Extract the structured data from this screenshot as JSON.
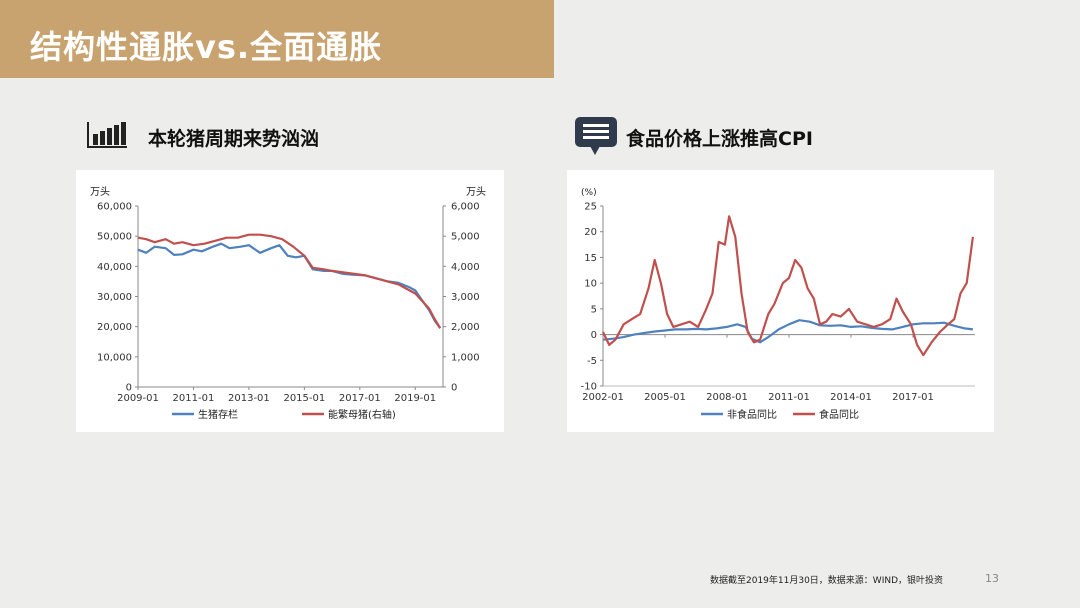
{
  "header": {
    "title": "结构性通胀vs.全面通胀"
  },
  "left_section": {
    "heading": "本轮猪周期来势汹汹",
    "icon": "bar-chart-icon"
  },
  "right_section": {
    "heading": "食品价格上涨推高CPI",
    "icon": "speech-bubble-list-icon"
  },
  "footer": {
    "note": "数据截至2019年11月30日，数据来源：WIND，银叶投资",
    "page": "13"
  },
  "colors": {
    "accent": "#c9a36f",
    "blue_series": "#4f81bd",
    "red_series": "#c0504d"
  },
  "chart_data": [
    {
      "type": "line",
      "left_unit": "万头",
      "right_unit": "万头",
      "x_ticks": [
        "2009-01",
        "2011-01",
        "2013-01",
        "2015-01",
        "2017-01",
        "2019-01"
      ],
      "y_left_ticks": [
        "0",
        "10,000",
        "20,000",
        "30,000",
        "40,000",
        "50,000",
        "60,000"
      ],
      "y_right_ticks": [
        "0",
        "1,000",
        "2,000",
        "3,000",
        "4,000",
        "5,000",
        "6,000"
      ],
      "ylim_left": [
        0,
        60000
      ],
      "ylim_right": [
        0,
        6000
      ],
      "xlim": [
        2009.0,
        2020.0
      ],
      "legend_position": "bottom",
      "series": [
        {
          "name": "生猪存栏",
          "axis": "left",
          "color": "#4f81bd",
          "x": [
            2009.0,
            2009.3,
            2009.6,
            2010.0,
            2010.3,
            2010.6,
            2011.0,
            2011.3,
            2011.7,
            2012.0,
            2012.3,
            2012.7,
            2013.0,
            2013.4,
            2013.8,
            2014.1,
            2014.4,
            2014.7,
            2015.0,
            2015.3,
            2015.7,
            2016.0,
            2016.4,
            2016.8,
            2017.2,
            2017.6,
            2018.0,
            2018.4,
            2018.8,
            2019.0,
            2019.3,
            2019.5,
            2019.7,
            2019.9
          ],
          "y": [
            45500,
            44500,
            46500,
            46000,
            43800,
            44000,
            45500,
            45000,
            46500,
            47500,
            46000,
            46500,
            47000,
            44500,
            46000,
            47000,
            43500,
            43000,
            43500,
            39000,
            38500,
            38500,
            37500,
            37200,
            37000,
            36000,
            35000,
            34500,
            33000,
            32000,
            28000,
            25500,
            22000,
            19500
          ]
        },
        {
          "name": "能繁母猪(右轴)",
          "axis": "right",
          "color": "#c0504d",
          "x": [
            2009.0,
            2009.3,
            2009.6,
            2010.0,
            2010.3,
            2010.6,
            2011.0,
            2011.4,
            2011.8,
            2012.2,
            2012.6,
            2013.0,
            2013.4,
            2013.8,
            2014.2,
            2014.6,
            2015.0,
            2015.3,
            2015.7,
            2016.0,
            2016.4,
            2016.8,
            2017.2,
            2017.6,
            2018.0,
            2018.4,
            2018.8,
            2019.0,
            2019.3,
            2019.5,
            2019.7,
            2019.9
          ],
          "y": [
            4950,
            4900,
            4800,
            4900,
            4750,
            4800,
            4700,
            4750,
            4850,
            4950,
            4950,
            5050,
            5050,
            5000,
            4900,
            4650,
            4350,
            3950,
            3900,
            3850,
            3800,
            3750,
            3700,
            3600,
            3500,
            3400,
            3200,
            3100,
            2800,
            2600,
            2250,
            1950
          ]
        }
      ]
    },
    {
      "type": "line",
      "y_unit": "(%)",
      "x_ticks": [
        "2002-01",
        "2005-01",
        "2008-01",
        "2011-01",
        "2014-01",
        "2017-01"
      ],
      "y_ticks": [
        "-10",
        "-5",
        "0",
        "5",
        "10",
        "15",
        "20",
        "25"
      ],
      "ylim": [
        -10,
        25
      ],
      "xlim": [
        2002.0,
        2020.0
      ],
      "legend_position": "bottom",
      "series": [
        {
          "name": "非食品同比",
          "color": "#4f81bd",
          "x": [
            2002.0,
            2002.5,
            2003.0,
            2003.5,
            2004.0,
            2004.5,
            2005.0,
            2005.5,
            2006.0,
            2006.5,
            2007.0,
            2007.5,
            2008.0,
            2008.5,
            2008.9,
            2009.2,
            2009.6,
            2010.0,
            2010.5,
            2011.0,
            2011.5,
            2012.0,
            2012.5,
            2013.0,
            2013.5,
            2014.0,
            2014.5,
            2015.0,
            2015.5,
            2016.0,
            2016.5,
            2017.0,
            2017.5,
            2018.0,
            2018.5,
            2019.0,
            2019.5,
            2019.9
          ],
          "y": [
            -1.0,
            -0.8,
            -0.5,
            0.0,
            0.3,
            0.6,
            0.8,
            1.0,
            1.0,
            1.1,
            1.0,
            1.2,
            1.5,
            2.0,
            1.5,
            -0.8,
            -1.5,
            -0.5,
            1.0,
            2.0,
            2.8,
            2.5,
            1.8,
            1.7,
            1.8,
            1.5,
            1.6,
            1.3,
            1.1,
            1.0,
            1.5,
            2.0,
            2.2,
            2.2,
            2.3,
            1.7,
            1.2,
            1.0
          ]
        },
        {
          "name": "食品同比",
          "color": "#c0504d",
          "x": [
            2002.0,
            2002.3,
            2002.6,
            2003.0,
            2003.4,
            2003.8,
            2004.2,
            2004.5,
            2004.8,
            2005.1,
            2005.4,
            2005.8,
            2006.2,
            2006.6,
            2007.0,
            2007.3,
            2007.6,
            2007.9,
            2008.1,
            2008.4,
            2008.7,
            2009.0,
            2009.3,
            2009.6,
            2010.0,
            2010.3,
            2010.7,
            2011.0,
            2011.3,
            2011.6,
            2011.9,
            2012.2,
            2012.5,
            2012.8,
            2013.1,
            2013.5,
            2013.9,
            2014.3,
            2014.7,
            2015.1,
            2015.5,
            2015.9,
            2016.2,
            2016.5,
            2016.9,
            2017.2,
            2017.5,
            2017.9,
            2018.3,
            2018.7,
            2019.0,
            2019.3,
            2019.6,
            2019.9
          ],
          "y": [
            0.5,
            -2.0,
            -1.0,
            2.0,
            3.0,
            4.0,
            9.0,
            14.5,
            10.0,
            4.0,
            1.5,
            2.0,
            2.5,
            1.5,
            5.0,
            8.0,
            18.0,
            17.5,
            23.0,
            19.0,
            8.0,
            0.5,
            -1.5,
            -1.0,
            4.0,
            6.0,
            10.0,
            11.0,
            14.5,
            13.0,
            9.0,
            7.0,
            2.0,
            2.5,
            4.0,
            3.5,
            5.0,
            2.5,
            2.0,
            1.5,
            2.0,
            3.0,
            7.0,
            4.5,
            2.0,
            -2.0,
            -4.0,
            -1.5,
            0.5,
            2.0,
            3.0,
            8.0,
            10.0,
            19.0
          ]
        }
      ]
    }
  ]
}
